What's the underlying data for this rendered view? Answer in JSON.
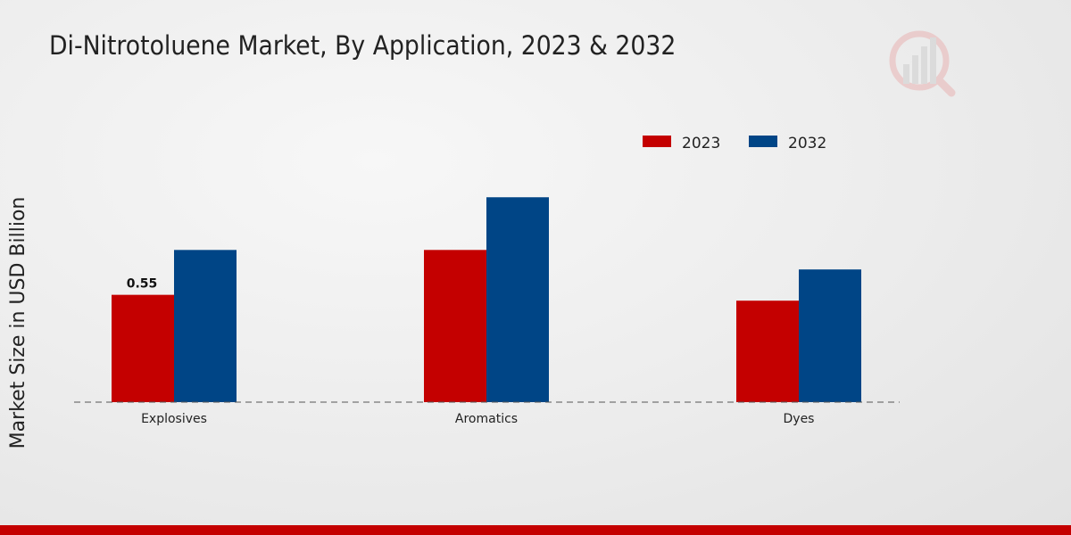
{
  "chart_data": {
    "type": "bar",
    "title": "Di-Nitrotoluene Market, By Application, 2023 & 2032",
    "xlabel": "",
    "ylabel": "Market Size in USD Billion",
    "categories": [
      "Explosives",
      "Aromatics",
      "Dyes"
    ],
    "series": [
      {
        "name": "2023",
        "color": "#c40000",
        "values": [
          0.55,
          0.78,
          0.52
        ]
      },
      {
        "name": "2032",
        "color": "#004586",
        "values": [
          0.78,
          1.05,
          0.68
        ]
      }
    ],
    "data_labels": [
      {
        "series": "2023",
        "category": "Explosives",
        "text": "0.55"
      }
    ],
    "ylim": [
      0,
      1.7
    ],
    "grid": false,
    "legend_position": "top-right"
  }
}
